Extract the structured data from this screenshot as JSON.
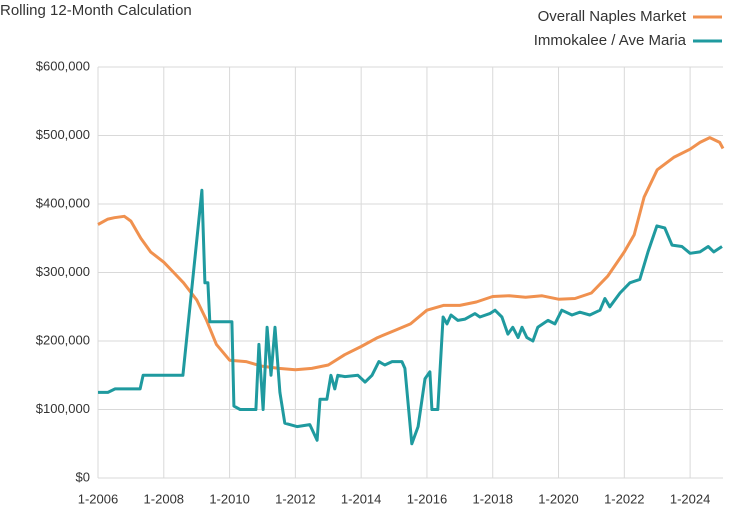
{
  "chart_data": {
    "type": "line",
    "title": "Rolling 12-Month Calculation",
    "xlim": [
      2006,
      2025
    ],
    "ylim": [
      0,
      600000
    ],
    "xticks": [
      {
        "value": 2006,
        "label": "1-2006"
      },
      {
        "value": 2008,
        "label": "1-2008"
      },
      {
        "value": 2010,
        "label": "1-2010"
      },
      {
        "value": 2012,
        "label": "1-2012"
      },
      {
        "value": 2014,
        "label": "1-2014"
      },
      {
        "value": 2016,
        "label": "1-2016"
      },
      {
        "value": 2018,
        "label": "1-2018"
      },
      {
        "value": 2020,
        "label": "1-2020"
      },
      {
        "value": 2022,
        "label": "1-2022"
      },
      {
        "value": 2024,
        "label": "1-2024"
      }
    ],
    "yticks": [
      {
        "value": 0,
        "label": "$0"
      },
      {
        "value": 100000,
        "label": "$100,000"
      },
      {
        "value": 200000,
        "label": "$200,000"
      },
      {
        "value": 300000,
        "label": "$300,000"
      },
      {
        "value": 400000,
        "label": "$400,000"
      },
      {
        "value": 500000,
        "label": "$500,000"
      },
      {
        "value": 600000,
        "label": "$600,000"
      }
    ],
    "grid": true,
    "legend": "top-right",
    "series": [
      {
        "name": "Overall Naples Market",
        "color": "#f0914f",
        "x": [
          2006.0,
          2006.3,
          2006.5,
          2006.8,
          2007.0,
          2007.3,
          2007.6,
          2008.0,
          2008.3,
          2008.6,
          2009.0,
          2009.3,
          2009.6,
          2010.0,
          2010.5,
          2011.0,
          2011.5,
          2012.0,
          2012.5,
          2013.0,
          2013.5,
          2014.0,
          2014.5,
          2015.0,
          2015.5,
          2016.0,
          2016.5,
          2017.0,
          2017.5,
          2018.0,
          2018.5,
          2019.0,
          2019.5,
          2020.0,
          2020.5,
          2021.0,
          2021.5,
          2022.0,
          2022.3,
          2022.6,
          2023.0,
          2023.5,
          2024.0,
          2024.3,
          2024.6,
          2024.9,
          2025.0
        ],
        "values": [
          370000,
          378000,
          380000,
          382000,
          375000,
          350000,
          330000,
          315000,
          300000,
          285000,
          260000,
          230000,
          195000,
          172000,
          170000,
          163000,
          160000,
          158000,
          160000,
          165000,
          180000,
          192000,
          205000,
          215000,
          225000,
          245000,
          252000,
          252000,
          257000,
          265000,
          266000,
          264000,
          266000,
          261000,
          262000,
          270000,
          295000,
          330000,
          355000,
          410000,
          450000,
          468000,
          480000,
          490000,
          497000,
          490000,
          481000
        ]
      },
      {
        "name": "Immokalee / Ave Maria",
        "color": "#1f9a9f",
        "x": [
          2006.0,
          2006.3,
          2006.52,
          2007.28,
          2007.37,
          2008.58,
          2009.16,
          2009.25,
          2009.34,
          2009.4,
          2010.07,
          2010.13,
          2010.32,
          2010.8,
          2010.89,
          2011.02,
          2011.14,
          2011.26,
          2011.38,
          2011.53,
          2011.68,
          2012.05,
          2012.44,
          2012.66,
          2012.75,
          2012.96,
          2013.08,
          2013.2,
          2013.29,
          2013.51,
          2013.9,
          2014.12,
          2014.33,
          2014.54,
          2014.72,
          2014.94,
          2015.24,
          2015.33,
          2015.54,
          2015.73,
          2015.94,
          2016.09,
          2016.15,
          2016.33,
          2016.49,
          2016.61,
          2016.73,
          2016.94,
          2017.16,
          2017.46,
          2017.61,
          2017.91,
          2018.07,
          2018.28,
          2018.46,
          2018.61,
          2018.77,
          2018.89,
          2019.04,
          2019.22,
          2019.37,
          2019.68,
          2019.89,
          2020.1,
          2020.41,
          2020.65,
          2020.95,
          2021.26,
          2021.41,
          2021.56,
          2021.87,
          2022.17,
          2022.47,
          2022.72,
          2022.99,
          2023.23,
          2023.45,
          2023.75,
          2024.0,
          2024.3,
          2024.55,
          2024.72,
          2024.97
        ],
        "values": [
          125000,
          125000,
          130000,
          130000,
          150000,
          150000,
          420000,
          285000,
          285000,
          228000,
          228000,
          105000,
          100000,
          100000,
          195000,
          100000,
          220000,
          150000,
          220000,
          125000,
          80000,
          75000,
          78000,
          55000,
          115000,
          115000,
          150000,
          130000,
          150000,
          148000,
          150000,
          140000,
          150000,
          170000,
          165000,
          170000,
          170000,
          160000,
          50000,
          75000,
          145000,
          155000,
          100000,
          100000,
          235000,
          225000,
          238000,
          230000,
          232000,
          240000,
          235000,
          240000,
          245000,
          235000,
          210000,
          220000,
          205000,
          220000,
          205000,
          200000,
          220000,
          230000,
          225000,
          245000,
          238000,
          242000,
          238000,
          245000,
          262000,
          250000,
          270000,
          285000,
          290000,
          330000,
          368000,
          365000,
          340000,
          338000,
          328000,
          330000,
          338000,
          330000,
          338000
        ]
      }
    ]
  }
}
